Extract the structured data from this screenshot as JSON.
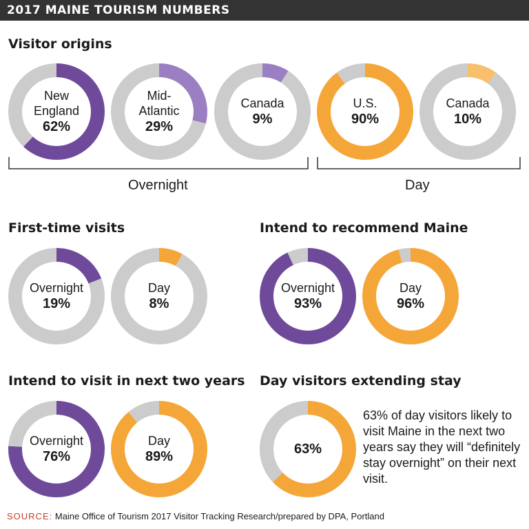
{
  "header": {
    "title": "2017 MAINE TOURISM NUMBERS"
  },
  "sections": {
    "visitor_origins": {
      "title": "Visitor origins"
    },
    "first_time": {
      "title": "First-time visits"
    },
    "recommend": {
      "title": "Intend to recommend Maine"
    },
    "visit_two_years": {
      "title": "Intend to visit in next two years"
    },
    "extending_stay": {
      "title": "Day visitors extending stay"
    }
  },
  "groups": {
    "overnight": "Overnight",
    "day": "Day"
  },
  "extending_stay_note": "63% of day visitors likely to visit Maine in the next two years say they will “definitely stay overnight” on their next visit.",
  "source": {
    "label": "SOURCE:",
    "text": "Maine Office of Tourism 2017 Visitor Tracking Research/prepared by DPA, Portland"
  },
  "colors": {
    "purple": "#6f4a9a",
    "light_purple": "#9b7fc3",
    "orange": "#f5a638",
    "light_orange": "#f8bf6c",
    "gray": "#cccccc",
    "banner": "#333333",
    "source_label": "#c2402a"
  },
  "chart_data": [
    {
      "type": "pie",
      "section": "Visitor origins",
      "group": "Overnight",
      "label_lines": [
        "New",
        "England"
      ],
      "value_label": "62%",
      "values": [
        62,
        38
      ],
      "colors": [
        "purple",
        "gray"
      ]
    },
    {
      "type": "pie",
      "section": "Visitor origins",
      "group": "Overnight",
      "label_lines": [
        "Mid-",
        "Atlantic"
      ],
      "value_label": "29%",
      "values": [
        29,
        71
      ],
      "colors": [
        "light_purple",
        "gray"
      ]
    },
    {
      "type": "pie",
      "section": "Visitor origins",
      "group": "Overnight",
      "label_lines": [
        "Canada"
      ],
      "value_label": "9%",
      "values": [
        9,
        91
      ],
      "colors": [
        "light_purple",
        "gray"
      ]
    },
    {
      "type": "pie",
      "section": "Visitor origins",
      "group": "Day",
      "label_lines": [
        "U.S."
      ],
      "value_label": "90%",
      "values": [
        90,
        10
      ],
      "colors": [
        "orange",
        "gray"
      ]
    },
    {
      "type": "pie",
      "section": "Visitor origins",
      "group": "Day",
      "label_lines": [
        "Canada"
      ],
      "value_label": "10%",
      "values": [
        10,
        90
      ],
      "colors": [
        "light_orange",
        "gray"
      ]
    },
    {
      "type": "pie",
      "section": "First-time visits",
      "label_lines": [
        "Overnight"
      ],
      "value_label": "19%",
      "values": [
        19,
        81
      ],
      "colors": [
        "purple",
        "gray"
      ]
    },
    {
      "type": "pie",
      "section": "First-time visits",
      "label_lines": [
        "Day"
      ],
      "value_label": "8%",
      "values": [
        8,
        92
      ],
      "colors": [
        "orange",
        "gray"
      ]
    },
    {
      "type": "pie",
      "section": "Intend to recommend Maine",
      "label_lines": [
        "Overnight"
      ],
      "value_label": "93%",
      "values": [
        93,
        7
      ],
      "colors": [
        "purple",
        "gray"
      ]
    },
    {
      "type": "pie",
      "section": "Intend to recommend Maine",
      "label_lines": [
        "Day"
      ],
      "value_label": "96%",
      "values": [
        96,
        4
      ],
      "colors": [
        "orange",
        "gray"
      ]
    },
    {
      "type": "pie",
      "section": "Intend to visit in next two years",
      "label_lines": [
        "Overnight"
      ],
      "value_label": "76%",
      "values": [
        76,
        24
      ],
      "colors": [
        "purple",
        "gray"
      ]
    },
    {
      "type": "pie",
      "section": "Intend to visit in next two years",
      "label_lines": [
        "Day"
      ],
      "value_label": "89%",
      "values": [
        89,
        11
      ],
      "colors": [
        "orange",
        "gray"
      ]
    },
    {
      "type": "pie",
      "section": "Day visitors extending stay",
      "label_lines": [],
      "value_label": "63%",
      "values": [
        63,
        37
      ],
      "colors": [
        "orange",
        "gray"
      ]
    }
  ]
}
